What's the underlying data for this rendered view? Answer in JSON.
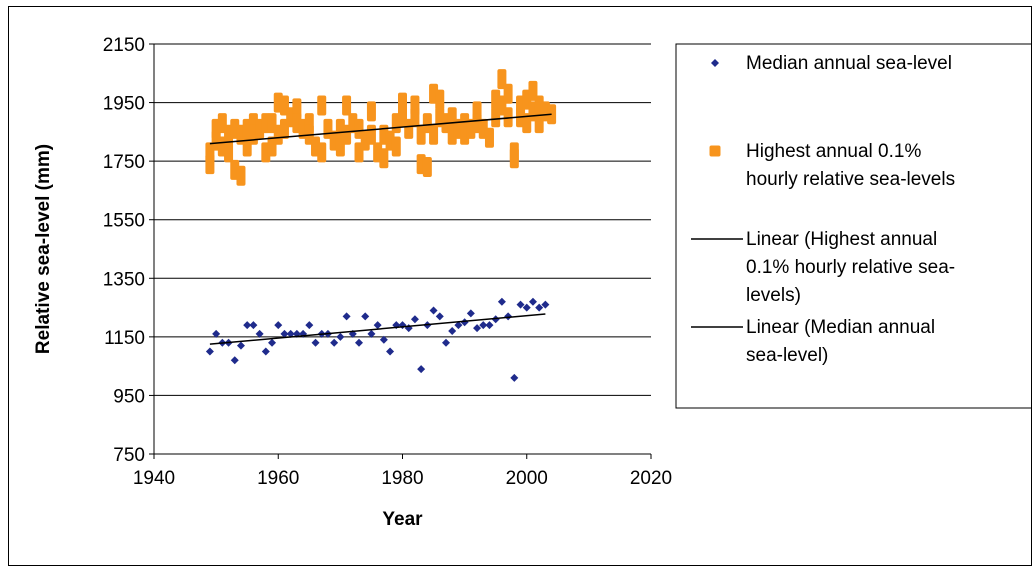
{
  "chart_data": {
    "type": "scatter",
    "xlabel": "Year",
    "ylabel": "Relative sea-level (mm)",
    "xlim": [
      1940,
      2020
    ],
    "ylim": [
      750,
      2150
    ],
    "x_ticks": [
      1940,
      1960,
      1980,
      2000,
      2020
    ],
    "y_ticks": [
      750,
      950,
      1150,
      1350,
      1550,
      1750,
      1950,
      2150
    ],
    "grid": {
      "horizontal": true,
      "vertical": false
    },
    "legend_position": "right",
    "series": [
      {
        "name": "Median annual sea-level",
        "marker": "diamond",
        "color": "#1f2b8c",
        "points": [
          [
            1949,
            1100
          ],
          [
            1950,
            1160
          ],
          [
            1951,
            1130
          ],
          [
            1952,
            1130
          ],
          [
            1953,
            1070
          ],
          [
            1954,
            1120
          ],
          [
            1955,
            1190
          ],
          [
            1956,
            1190
          ],
          [
            1957,
            1160
          ],
          [
            1958,
            1100
          ],
          [
            1959,
            1130
          ],
          [
            1960,
            1190
          ],
          [
            1961,
            1160
          ],
          [
            1962,
            1160
          ],
          [
            1963,
            1160
          ],
          [
            1964,
            1160
          ],
          [
            1965,
            1190
          ],
          [
            1966,
            1130
          ],
          [
            1967,
            1160
          ],
          [
            1968,
            1160
          ],
          [
            1969,
            1130
          ],
          [
            1970,
            1150
          ],
          [
            1971,
            1220
          ],
          [
            1972,
            1160
          ],
          [
            1973,
            1130
          ],
          [
            1974,
            1220
          ],
          [
            1975,
            1160
          ],
          [
            1976,
            1190
          ],
          [
            1977,
            1140
          ],
          [
            1978,
            1100
          ],
          [
            1979,
            1190
          ],
          [
            1980,
            1190
          ],
          [
            1981,
            1180
          ],
          [
            1982,
            1210
          ],
          [
            1983,
            1040
          ],
          [
            1984,
            1190
          ],
          [
            1985,
            1240
          ],
          [
            1986,
            1220
          ],
          [
            1987,
            1130
          ],
          [
            1988,
            1170
          ],
          [
            1989,
            1190
          ],
          [
            1990,
            1200
          ],
          [
            1991,
            1230
          ],
          [
            1992,
            1180
          ],
          [
            1993,
            1190
          ],
          [
            1994,
            1190
          ],
          [
            1995,
            1210
          ],
          [
            1996,
            1270
          ],
          [
            1997,
            1220
          ],
          [
            1998,
            1010
          ],
          [
            1999,
            1260
          ],
          [
            2000,
            1250
          ],
          [
            2001,
            1270
          ],
          [
            2002,
            1250
          ],
          [
            2003,
            1260
          ]
        ]
      },
      {
        "name": "Highest annual 0.1% hourly relative sea-levels",
        "marker": "square",
        "color": "#f7941d",
        "points": [
          [
            1949,
            1740
          ],
          [
            1949,
            1780
          ],
          [
            1950,
            1820
          ],
          [
            1950,
            1860
          ],
          [
            1951,
            1880
          ],
          [
            1951,
            1800
          ],
          [
            1952,
            1840
          ],
          [
            1952,
            1780
          ],
          [
            1953,
            1860
          ],
          [
            1953,
            1720
          ],
          [
            1954,
            1840
          ],
          [
            1954,
            1700
          ],
          [
            1955,
            1860
          ],
          [
            1955,
            1800
          ],
          [
            1956,
            1880
          ],
          [
            1956,
            1840
          ],
          [
            1957,
            1860
          ],
          [
            1958,
            1880
          ],
          [
            1958,
            1780
          ],
          [
            1959,
            1800
          ],
          [
            1959,
            1880
          ],
          [
            1960,
            1950
          ],
          [
            1960,
            1840
          ],
          [
            1961,
            1860
          ],
          [
            1961,
            1940
          ],
          [
            1962,
            1900
          ],
          [
            1963,
            1930
          ],
          [
            1963,
            1880
          ],
          [
            1964,
            1860
          ],
          [
            1965,
            1880
          ],
          [
            1965,
            1840
          ],
          [
            1966,
            1800
          ],
          [
            1967,
            1780
          ],
          [
            1967,
            1940
          ],
          [
            1968,
            1860
          ],
          [
            1969,
            1820
          ],
          [
            1970,
            1800
          ],
          [
            1970,
            1860
          ],
          [
            1971,
            1940
          ],
          [
            1971,
            1840
          ],
          [
            1972,
            1880
          ],
          [
            1973,
            1780
          ],
          [
            1973,
            1860
          ],
          [
            1974,
            1820
          ],
          [
            1975,
            1920
          ],
          [
            1975,
            1840
          ],
          [
            1976,
            1780
          ],
          [
            1977,
            1760
          ],
          [
            1977,
            1840
          ],
          [
            1978,
            1820
          ],
          [
            1979,
            1800
          ],
          [
            1979,
            1880
          ],
          [
            1980,
            1900
          ],
          [
            1980,
            1950
          ],
          [
            1981,
            1860
          ],
          [
            1982,
            1900
          ],
          [
            1982,
            1940
          ],
          [
            1983,
            1740
          ],
          [
            1983,
            1840
          ],
          [
            1984,
            1730
          ],
          [
            1984,
            1880
          ],
          [
            1985,
            1980
          ],
          [
            1985,
            1840
          ],
          [
            1986,
            1960
          ],
          [
            1986,
            1900
          ],
          [
            1987,
            1880
          ],
          [
            1988,
            1840
          ],
          [
            1988,
            1900
          ],
          [
            1989,
            1860
          ],
          [
            1990,
            1880
          ],
          [
            1990,
            1840
          ],
          [
            1991,
            1860
          ],
          [
            1992,
            1920
          ],
          [
            1992,
            1880
          ],
          [
            1993,
            1860
          ],
          [
            1994,
            1830
          ],
          [
            1995,
            1900
          ],
          [
            1995,
            1960
          ],
          [
            1996,
            2030
          ],
          [
            1996,
            1940
          ],
          [
            1997,
            1980
          ],
          [
            1997,
            1900
          ],
          [
            1998,
            1760
          ],
          [
            1998,
            1780
          ],
          [
            1999,
            1940
          ],
          [
            1999,
            1900
          ],
          [
            2000,
            1960
          ],
          [
            2000,
            1880
          ],
          [
            2001,
            1990
          ],
          [
            2001,
            1920
          ],
          [
            2002,
            1940
          ],
          [
            2002,
            1880
          ],
          [
            2003,
            1920
          ],
          [
            2004,
            1910
          ]
        ]
      },
      {
        "name": "Linear (Highest annual 0.1% hourly relative sea-levels)",
        "type": "line",
        "color": "#000000",
        "points": [
          [
            1949,
            1810
          ],
          [
            2004,
            1910
          ]
        ]
      },
      {
        "name": "Linear (Median annual sea-level)",
        "type": "line",
        "color": "#000000",
        "points": [
          [
            1949,
            1125
          ],
          [
            2003,
            1228
          ]
        ]
      }
    ],
    "legend": {
      "entries": [
        {
          "marker": "diamond",
          "color": "#1f2b8c",
          "lines": [
            "Median annual sea-level"
          ]
        },
        {
          "marker": "square",
          "color": "#f7941d",
          "lines": [
            "Highest annual 0.1%",
            "hourly relative sea-levels"
          ]
        },
        {
          "marker": "line",
          "color": "#000000",
          "lines": [
            "Linear (Highest annual",
            "0.1% hourly relative sea-",
            "levels)"
          ]
        },
        {
          "marker": "line",
          "color": "#000000",
          "lines": [
            "Linear (Median annual",
            "sea-level)"
          ]
        }
      ]
    }
  }
}
